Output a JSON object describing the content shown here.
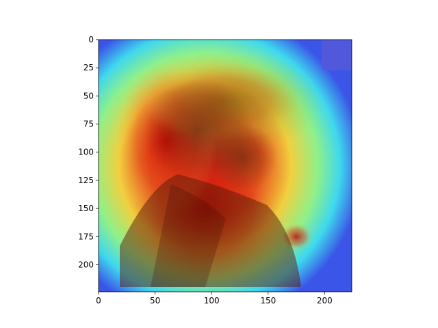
{
  "chart_data": {
    "type": "heatmap",
    "title": "",
    "xlabel": "",
    "ylabel": "",
    "xlim": [
      0,
      224
    ],
    "ylim": [
      224,
      0
    ],
    "grid": false,
    "colormap": "jet",
    "x_ticks": [
      {
        "value": 0,
        "label": "0"
      },
      {
        "value": 50,
        "label": "50"
      },
      {
        "value": 100,
        "label": "100"
      },
      {
        "value": 150,
        "label": "150"
      },
      {
        "value": 200,
        "label": "200"
      }
    ],
    "y_ticks": [
      {
        "value": 0,
        "label": "0"
      },
      {
        "value": 25,
        "label": "25"
      },
      {
        "value": 50,
        "label": "50"
      },
      {
        "value": 75,
        "label": "75"
      },
      {
        "value": 100,
        "label": "100"
      },
      {
        "value": 125,
        "label": "125"
      },
      {
        "value": 150,
        "label": "150"
      },
      {
        "value": 175,
        "label": "175"
      },
      {
        "value": 200,
        "label": "200"
      }
    ],
    "background_image": "sepia-portrait-sketch",
    "hot_regions": [
      {
        "cx": 95,
        "cy": 150,
        "rx": 70,
        "ry": 70,
        "level": 0.95
      },
      {
        "cx": 60,
        "cy": 90,
        "rx": 45,
        "ry": 70,
        "level": 0.9
      },
      {
        "cx": 110,
        "cy": 55,
        "rx": 70,
        "ry": 35,
        "level": 0.85
      },
      {
        "cx": 175,
        "cy": 175,
        "rx": 14,
        "ry": 12,
        "level": 0.95
      }
    ]
  }
}
